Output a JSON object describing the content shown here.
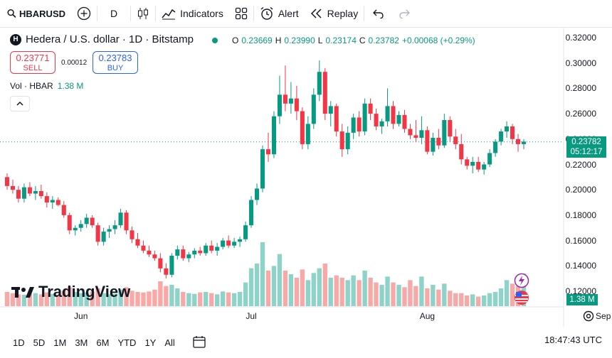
{
  "toolbar": {
    "symbol": "HBARUSD",
    "interval": "D",
    "indicators_label": "Indicators",
    "alert_label": "Alert",
    "replay_label": "Replay"
  },
  "legend": {
    "title": "Hedera / U.S. dollar · 1D · Bitstamp",
    "logo_letter": "H",
    "open_label": "O",
    "open": "0.23669",
    "high_label": "H",
    "high": "0.23990",
    "low_label": "L",
    "low": "0.23174",
    "close_label": "C",
    "close": "0.23782",
    "change": "+0.00068 (+0.29%)"
  },
  "order": {
    "sell_price": "0.23771",
    "sell_label": "SELL",
    "spread": "0.00012",
    "buy_price": "0.23783",
    "buy_label": "BUY"
  },
  "volume": {
    "label": "Vol · HBAR",
    "value": "1.38 M"
  },
  "tags": {
    "price": "0.23782",
    "countdown": "05:12:17",
    "volume": "1.38 M"
  },
  "watermark": "TradingView",
  "bottombar": {
    "ranges": [
      "1D",
      "5D",
      "1M",
      "3M",
      "6M",
      "YTD",
      "1Y",
      "All"
    ],
    "clock": "18:47:43 UTC"
  },
  "colors": {
    "up": "#089981",
    "down": "#f23645",
    "vol_up": "#8fd2c7",
    "vol_down": "#f7a9a7"
  },
  "chart_data": {
    "type": "candlestick",
    "title": "Hedera / U.S. dollar · 1D · Bitstamp",
    "y_ticks": [
      "0.32000",
      "0.30000",
      "0.28000",
      "0.26000",
      "0.24000",
      "0.22000",
      "0.20000",
      "0.18000",
      "0.16000",
      "0.14000",
      "0.12000"
    ],
    "ylim": [
      0.12,
      0.32
    ],
    "x_labels": [
      "Jun",
      "Jul",
      "Aug",
      "Sep"
    ],
    "x_label_day_index": [
      13,
      43,
      74,
      105
    ],
    "candles": [
      [
        0.21,
        0.213,
        0.2,
        0.203
      ],
      [
        0.203,
        0.208,
        0.197,
        0.2
      ],
      [
        0.2,
        0.203,
        0.19,
        0.193
      ],
      [
        0.193,
        0.205,
        0.19,
        0.202
      ],
      [
        0.202,
        0.206,
        0.195,
        0.197
      ],
      [
        0.197,
        0.203,
        0.192,
        0.199
      ],
      [
        0.199,
        0.204,
        0.193,
        0.195
      ],
      [
        0.195,
        0.198,
        0.186,
        0.19
      ],
      [
        0.19,
        0.195,
        0.185,
        0.192
      ],
      [
        0.192,
        0.194,
        0.187,
        0.188
      ],
      [
        0.188,
        0.191,
        0.178,
        0.18
      ],
      [
        0.18,
        0.182,
        0.165,
        0.168
      ],
      [
        0.168,
        0.172,
        0.164,
        0.17
      ],
      [
        0.17,
        0.176,
        0.167,
        0.173
      ],
      [
        0.173,
        0.181,
        0.17,
        0.178
      ],
      [
        0.178,
        0.18,
        0.17,
        0.172
      ],
      [
        0.172,
        0.174,
        0.156,
        0.159
      ],
      [
        0.159,
        0.17,
        0.156,
        0.167
      ],
      [
        0.167,
        0.172,
        0.162,
        0.169
      ],
      [
        0.169,
        0.176,
        0.165,
        0.172
      ],
      [
        0.172,
        0.185,
        0.17,
        0.182
      ],
      [
        0.182,
        0.184,
        0.165,
        0.168
      ],
      [
        0.168,
        0.171,
        0.158,
        0.161
      ],
      [
        0.161,
        0.166,
        0.154,
        0.156
      ],
      [
        0.156,
        0.16,
        0.15,
        0.152
      ],
      [
        0.152,
        0.156,
        0.147,
        0.149
      ],
      [
        0.149,
        0.152,
        0.144,
        0.146
      ],
      [
        0.146,
        0.15,
        0.135,
        0.138
      ],
      [
        0.138,
        0.142,
        0.13,
        0.133
      ],
      [
        0.133,
        0.15,
        0.131,
        0.148
      ],
      [
        0.148,
        0.156,
        0.145,
        0.153
      ],
      [
        0.153,
        0.156,
        0.144,
        0.146
      ],
      [
        0.146,
        0.151,
        0.143,
        0.149
      ],
      [
        0.149,
        0.154,
        0.146,
        0.152
      ],
      [
        0.152,
        0.155,
        0.148,
        0.15
      ],
      [
        0.15,
        0.158,
        0.148,
        0.156
      ],
      [
        0.156,
        0.16,
        0.15,
        0.152
      ],
      [
        0.152,
        0.158,
        0.148,
        0.155
      ],
      [
        0.155,
        0.162,
        0.153,
        0.16
      ],
      [
        0.16,
        0.164,
        0.154,
        0.156
      ],
      [
        0.156,
        0.162,
        0.154,
        0.159
      ],
      [
        0.159,
        0.163,
        0.155,
        0.161
      ],
      [
        0.161,
        0.175,
        0.159,
        0.172
      ],
      [
        0.172,
        0.195,
        0.17,
        0.192
      ],
      [
        0.192,
        0.205,
        0.188,
        0.201
      ],
      [
        0.201,
        0.235,
        0.198,
        0.232
      ],
      [
        0.232,
        0.245,
        0.222,
        0.228
      ],
      [
        0.228,
        0.262,
        0.225,
        0.258
      ],
      [
        0.258,
        0.29,
        0.252,
        0.275
      ],
      [
        0.275,
        0.298,
        0.262,
        0.268
      ],
      [
        0.268,
        0.285,
        0.26,
        0.272
      ],
      [
        0.272,
        0.282,
        0.255,
        0.262
      ],
      [
        0.262,
        0.265,
        0.232,
        0.236
      ],
      [
        0.236,
        0.258,
        0.232,
        0.252
      ],
      [
        0.252,
        0.28,
        0.248,
        0.275
      ],
      [
        0.275,
        0.302,
        0.27,
        0.293
      ],
      [
        0.293,
        0.296,
        0.255,
        0.26
      ],
      [
        0.26,
        0.27,
        0.25,
        0.266
      ],
      [
        0.266,
        0.268,
        0.242,
        0.246
      ],
      [
        0.246,
        0.252,
        0.226,
        0.232
      ],
      [
        0.232,
        0.25,
        0.228,
        0.245
      ],
      [
        0.245,
        0.26,
        0.24,
        0.257
      ],
      [
        0.257,
        0.262,
        0.242,
        0.246
      ],
      [
        0.246,
        0.272,
        0.243,
        0.268
      ],
      [
        0.268,
        0.272,
        0.255,
        0.26
      ],
      [
        0.26,
        0.264,
        0.247,
        0.25
      ],
      [
        0.25,
        0.256,
        0.244,
        0.254
      ],
      [
        0.254,
        0.28,
        0.25,
        0.266
      ],
      [
        0.266,
        0.27,
        0.248,
        0.252
      ],
      [
        0.252,
        0.262,
        0.25,
        0.259
      ],
      [
        0.259,
        0.263,
        0.245,
        0.248
      ],
      [
        0.248,
        0.252,
        0.24,
        0.243
      ],
      [
        0.243,
        0.255,
        0.238,
        0.241
      ],
      [
        0.241,
        0.258,
        0.236,
        0.247
      ],
      [
        0.247,
        0.25,
        0.228,
        0.23
      ],
      [
        0.23,
        0.245,
        0.227,
        0.241
      ],
      [
        0.241,
        0.248,
        0.232,
        0.235
      ],
      [
        0.235,
        0.26,
        0.233,
        0.255
      ],
      [
        0.255,
        0.258,
        0.238,
        0.242
      ],
      [
        0.242,
        0.248,
        0.232,
        0.236
      ],
      [
        0.236,
        0.244,
        0.22,
        0.224
      ],
      [
        0.224,
        0.226,
        0.216,
        0.219
      ],
      [
        0.219,
        0.226,
        0.213,
        0.222
      ],
      [
        0.222,
        0.226,
        0.214,
        0.216
      ],
      [
        0.216,
        0.222,
        0.212,
        0.22
      ],
      [
        0.22,
        0.232,
        0.218,
        0.229
      ],
      [
        0.229,
        0.24,
        0.226,
        0.238
      ],
      [
        0.238,
        0.248,
        0.235,
        0.246
      ],
      [
        0.246,
        0.254,
        0.241,
        0.25
      ],
      [
        0.25,
        0.252,
        0.236,
        0.24
      ],
      [
        0.24,
        0.244,
        0.23,
        0.236
      ],
      [
        0.236,
        0.24,
        0.232,
        0.238
      ]
    ],
    "volumes": [
      0.6,
      0.55,
      0.5,
      0.48,
      0.52,
      0.55,
      0.5,
      0.58,
      0.52,
      0.48,
      0.65,
      0.8,
      0.6,
      0.55,
      0.58,
      0.62,
      0.75,
      0.55,
      0.5,
      0.52,
      0.7,
      0.8,
      0.65,
      0.6,
      0.58,
      0.62,
      0.7,
      1.05,
      0.85,
      0.9,
      0.75,
      0.6,
      0.55,
      0.52,
      0.58,
      0.6,
      0.55,
      0.5,
      0.62,
      0.58,
      0.55,
      0.6,
      1.0,
      1.6,
      1.8,
      2.7,
      1.5,
      1.7,
      2.2,
      1.5,
      1.35,
      1.2,
      1.55,
      1.1,
      1.4,
      1.6,
      1.8,
      1.2,
      1.3,
      1.2,
      1.1,
      1.3,
      1.1,
      1.5,
      1.2,
      1.0,
      0.9,
      1.25,
      1.0,
      0.9,
      0.8,
      1.1,
      0.85,
      1.25,
      0.75,
      0.9,
      0.7,
      0.95,
      0.65,
      0.55,
      0.55,
      0.45,
      0.5,
      0.4,
      0.45,
      0.55,
      0.6,
      0.75,
      1.1,
      0.95,
      0.85,
      1.38
    ]
  }
}
